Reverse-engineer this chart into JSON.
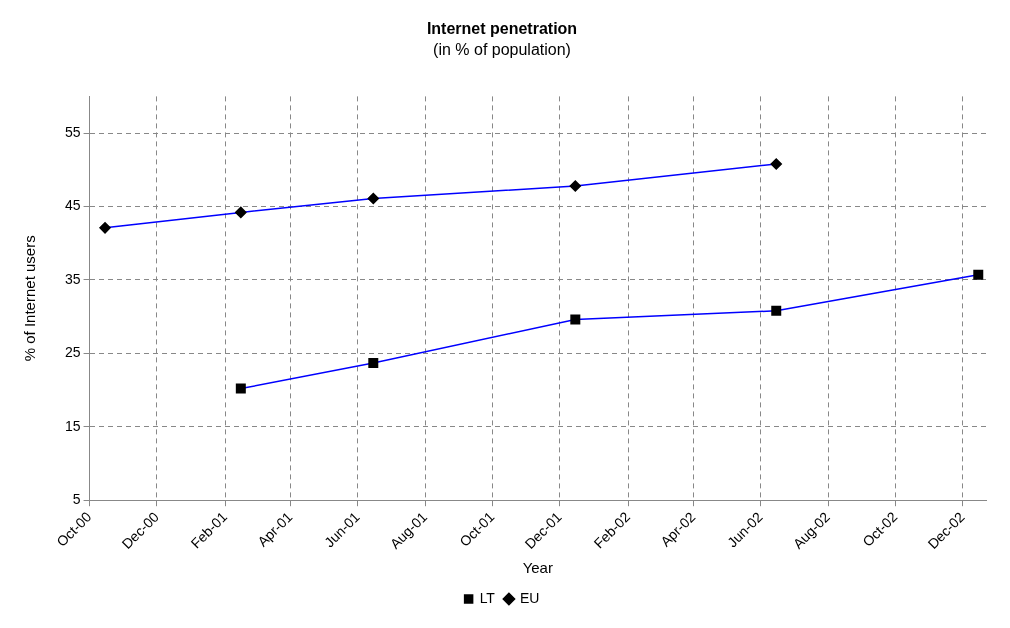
{
  "chart_data": {
    "type": "line",
    "title": "Internet penetration",
    "subtitle": "(in % of population)",
    "xlabel": "Year",
    "ylabel": "% of Internet users",
    "xlim": [
      "2000-10-01",
      "2002-12-22"
    ],
    "xticks": [
      {
        "value": "2000-10-01",
        "label": "Oct-00"
      },
      {
        "value": "2000-12-01",
        "label": "Dec-00"
      },
      {
        "value": "2001-02-01",
        "label": "Feb-01"
      },
      {
        "value": "2001-04-01",
        "label": "Apr-01"
      },
      {
        "value": "2001-06-01",
        "label": "Jun-01"
      },
      {
        "value": "2001-08-01",
        "label": "Aug-01"
      },
      {
        "value": "2001-10-01",
        "label": "Oct-01"
      },
      {
        "value": "2001-12-01",
        "label": "Dec-01"
      },
      {
        "value": "2002-02-01",
        "label": "Feb-02"
      },
      {
        "value": "2002-04-01",
        "label": "Apr-02"
      },
      {
        "value": "2002-06-01",
        "label": "Jun-02"
      },
      {
        "value": "2002-08-01",
        "label": "Aug-02"
      },
      {
        "value": "2002-10-01",
        "label": "Oct-02"
      },
      {
        "value": "2002-12-01",
        "label": "Dec-02"
      }
    ],
    "ylim": [
      5,
      60
    ],
    "yticks": [
      5,
      15,
      25,
      35,
      45,
      55
    ],
    "grid": true,
    "legend": "bottom",
    "line_style": "solid",
    "series": [
      {
        "name": "LT",
        "color": "#0000ff",
        "marker": "square",
        "x": [
          "2001-02-15",
          "2001-06-15",
          "2001-12-15",
          "2002-06-15",
          "2002-12-15"
        ],
        "values": [
          20.2,
          23.7,
          29.6,
          30.8,
          35.7
        ]
      },
      {
        "name": "EU",
        "color": "#0000ff",
        "marker": "diamond",
        "x": [
          "2000-10-15",
          "2001-02-15",
          "2001-06-15",
          "2001-12-15",
          "2002-06-15"
        ],
        "values": [
          42.1,
          44.2,
          46.1,
          47.8,
          50.8
        ]
      }
    ]
  }
}
